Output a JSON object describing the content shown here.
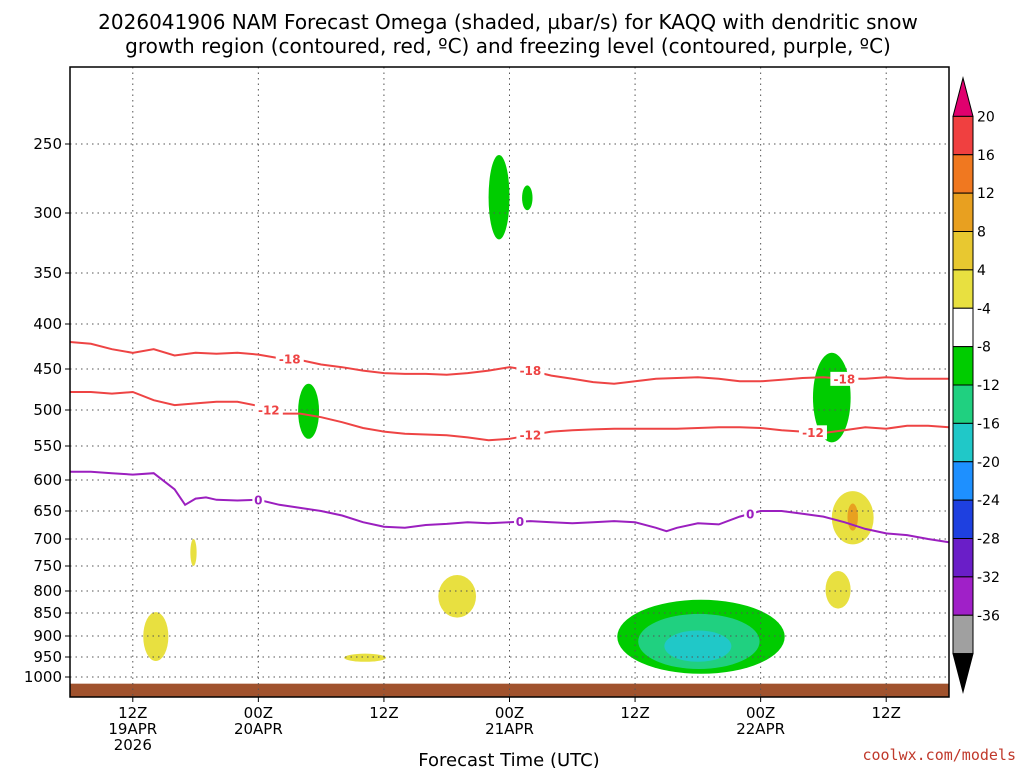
{
  "chart_data": {
    "type": "time-height cross-section",
    "title": [
      "2026041906 NAM Forecast Omega (shaded, µbar/s) for KAQQ with dendritic snow",
      "growth region (contoured, red, ºC) and freezing level (contoured, purple, ºC)"
    ],
    "xlabel": "Forecast Time (UTC)",
    "credit": "coolwx.com/models",
    "pressure_levels_hPa": [
      250,
      300,
      350,
      400,
      450,
      500,
      550,
      600,
      650,
      700,
      750,
      800,
      850,
      900,
      950,
      1000
    ],
    "y_tick_labels": [
      "250",
      "300",
      "350",
      "400",
      "450",
      "500",
      "550",
      "600",
      "650",
      "700",
      "750",
      "800",
      "850",
      "900",
      "950",
      "1000"
    ],
    "ylim_hPa": [
      200,
      1030
    ],
    "xlim_hours": [
      6,
      90
    ],
    "x_ticks": [
      {
        "hour": 12,
        "lines": [
          "12Z",
          "19APR",
          "2026"
        ]
      },
      {
        "hour": 24,
        "lines": [
          "00Z",
          "20APR"
        ]
      },
      {
        "hour": 36,
        "lines": [
          "12Z"
        ]
      },
      {
        "hour": 48,
        "lines": [
          "00Z",
          "21APR"
        ]
      },
      {
        "hour": 60,
        "lines": [
          "12Z"
        ]
      },
      {
        "hour": 72,
        "lines": [
          "00Z",
          "22APR"
        ]
      },
      {
        "hour": 84,
        "lines": [
          "12Z"
        ]
      }
    ],
    "colorbar": {
      "labels": [
        "20",
        "16",
        "12",
        "8",
        "4",
        "-4",
        "-8",
        "-12",
        "-16",
        "-20",
        "-24",
        "-28",
        "-32",
        "-36"
      ],
      "colors": [
        "#e0006e",
        "#f04040",
        "#f07820",
        "#e8a020",
        "#e8c830",
        "#e8e040",
        "#ffffff",
        "#00cc00",
        "#20d080",
        "#20c8c8",
        "#1e90ff",
        "#1e40e0",
        "#6a1ec8",
        "#a020c8",
        "#a0a0a0",
        "#000000"
      ]
    },
    "contours": [
      {
        "name": "dgz-minus-18",
        "label": "-18",
        "color": "#ee4444",
        "x": [
          6,
          8,
          10,
          12,
          14,
          16,
          18,
          20,
          22,
          24,
          26,
          28,
          30,
          32,
          34,
          36,
          38,
          40,
          42,
          44,
          46,
          48,
          50,
          52,
          54,
          56,
          58,
          60,
          62,
          64,
          66,
          68,
          70,
          72,
          74,
          76,
          78,
          80,
          82,
          84,
          86,
          88,
          90
        ],
        "p": [
          420,
          422,
          428,
          432,
          428,
          435,
          432,
          433,
          432,
          434,
          438,
          440,
          445,
          448,
          452,
          455,
          456,
          456,
          457,
          455,
          452,
          448,
          452,
          458,
          462,
          466,
          468,
          465,
          462,
          461,
          460,
          462,
          465,
          465,
          463,
          461,
          460,
          462,
          462,
          460,
          462,
          462,
          462
        ],
        "label_hours": [
          27,
          50,
          80
        ]
      },
      {
        "name": "dgz-minus-12",
        "label": "-12",
        "color": "#ee4444",
        "x": [
          6,
          8,
          10,
          12,
          14,
          16,
          18,
          20,
          22,
          24,
          26,
          28,
          30,
          32,
          34,
          36,
          38,
          40,
          42,
          44,
          46,
          48,
          50,
          52,
          54,
          56,
          58,
          60,
          62,
          64,
          66,
          68,
          70,
          72,
          74,
          76,
          78,
          80,
          82,
          84,
          86,
          88,
          90
        ],
        "p": [
          478,
          478,
          480,
          478,
          488,
          494,
          492,
          490,
          490,
          495,
          505,
          505,
          510,
          517,
          525,
          530,
          533,
          534,
          535,
          538,
          542,
          540,
          535,
          530,
          528,
          527,
          526,
          526,
          526,
          526,
          525,
          524,
          524,
          525,
          528,
          530,
          532,
          528,
          524,
          526,
          522,
          522,
          524
        ],
        "label_hours": [
          25,
          50,
          77
        ]
      },
      {
        "name": "freezing-level-0",
        "label": "0",
        "color": "#9b1fbf",
        "x": [
          6,
          8,
          10,
          12,
          14,
          16,
          17,
          18,
          19,
          20,
          22,
          24,
          26,
          28,
          30,
          32,
          34,
          36,
          38,
          40,
          42,
          44,
          46,
          48,
          50,
          52,
          54,
          56,
          58,
          60,
          62,
          63,
          64,
          66,
          68,
          70,
          72,
          74,
          76,
          78,
          80,
          82,
          84,
          86,
          88,
          90
        ],
        "p": [
          588,
          588,
          590,
          592,
          590,
          615,
          640,
          630,
          628,
          632,
          633,
          632,
          640,
          645,
          650,
          658,
          670,
          678,
          680,
          675,
          673,
          670,
          672,
          670,
          668,
          670,
          672,
          670,
          668,
          670,
          680,
          686,
          680,
          672,
          674,
          660,
          650,
          650,
          655,
          660,
          670,
          682,
          690,
          693,
          700,
          706
        ],
        "label_hours": [
          24,
          49,
          71
        ]
      }
    ],
    "omega_regions": [
      {
        "name": "upward-motion-300mb",
        "value_range": "-4 to -8",
        "color": "#00cc00",
        "center_hour": 47,
        "p_top": 258,
        "p_bottom": 322,
        "width_h": 1.0
      },
      {
        "name": "upward-motion-290mb",
        "value_range": "-4 to -8",
        "color": "#00cc00",
        "center_hour": 49.7,
        "p_top": 280,
        "p_bottom": 298,
        "width_h": 0.5
      },
      {
        "name": "upward-motion-500mb",
        "value_range": "-4 to -8",
        "color": "#00cc00",
        "center_hour": 28.8,
        "p_top": 468,
        "p_bottom": 540,
        "width_h": 1.0
      },
      {
        "name": "upward-motion-470mb",
        "value_range": "-4 to -8",
        "color": "#00cc00",
        "center_hour": 78.8,
        "p_top": 432,
        "p_bottom": 545,
        "width_h": 1.8
      },
      {
        "name": "downward-motion-660mb",
        "value_range": "4 to 8",
        "color": "#e8e040",
        "center_hour": 80.8,
        "p_top": 618,
        "p_bottom": 710,
        "width_h": 2.0
      },
      {
        "name": "downward-motion-650mb-core",
        "value_range": "8 to 12",
        "color": "#e8a020",
        "center_hour": 80.8,
        "p_top": 638,
        "p_bottom": 685,
        "width_h": 0.5
      },
      {
        "name": "downward-motion-800mb",
        "value_range": "4 to 8",
        "color": "#e8e040",
        "center_hour": 79.4,
        "p_top": 760,
        "p_bottom": 840,
        "width_h": 1.2
      },
      {
        "name": "downward-motion-815mb",
        "value_range": "4 to 8",
        "color": "#e8e040",
        "center_hour": 43,
        "p_top": 768,
        "p_bottom": 860,
        "width_h": 1.8
      },
      {
        "name": "downward-motion-720mb",
        "value_range": "4 to 8",
        "color": "#e8e040",
        "center_hour": 17.8,
        "p_top": 700,
        "p_bottom": 750,
        "width_h": 0.3
      },
      {
        "name": "downward-motion-900mb",
        "value_range": "4 to 8",
        "color": "#e8e040",
        "center_hour": 14.2,
        "p_top": 848,
        "p_bottom": 960,
        "width_h": 1.2
      },
      {
        "name": "downward-motion-950mb",
        "value_range": "4 to 8",
        "color": "#e8e040",
        "center_hour": 34.2,
        "p_top": 942,
        "p_bottom": 962,
        "width_h": 2.0
      },
      {
        "name": "upward-motion-925mb-outer",
        "value_range": "-4 to -8",
        "color": "#00cc00",
        "center_hour": 66.3,
        "p_top": 820,
        "p_bottom": 992,
        "width_h": 8.0
      },
      {
        "name": "upward-motion-925mb-mid",
        "value_range": "-8 to -12",
        "color": "#20d080",
        "center_hour": 66.1,
        "p_top": 852,
        "p_bottom": 980,
        "width_h": 5.8
      },
      {
        "name": "upward-motion-925mb-core",
        "value_range": "-12 to -16",
        "color": "#20c8c8",
        "center_hour": 66.0,
        "p_top": 888,
        "p_bottom": 962,
        "width_h": 3.2
      }
    ],
    "terrain": {
      "name": "surface",
      "color": "#a0522d",
      "p_top": 1010
    }
  }
}
